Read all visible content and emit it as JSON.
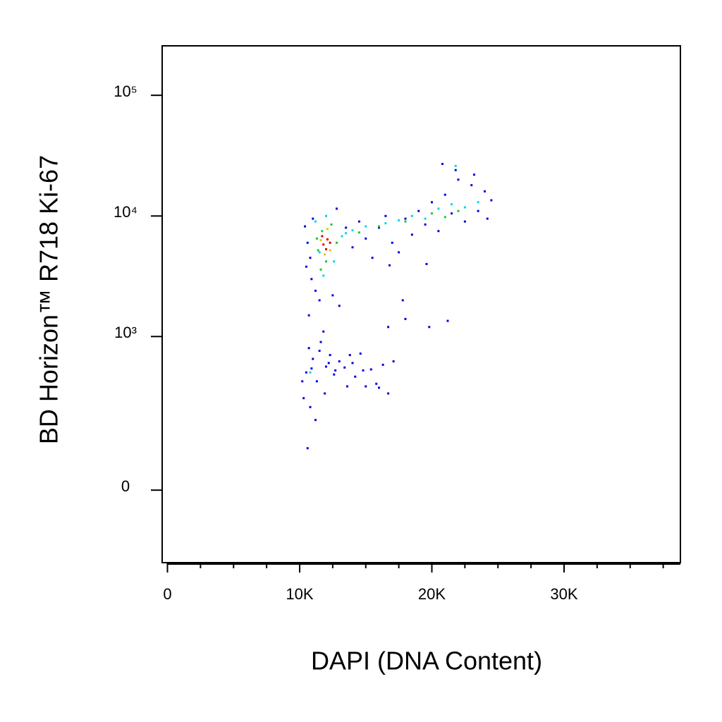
{
  "chart_data": {
    "type": "scatter",
    "xlabel": "DAPI (DNA Content)",
    "ylabel": "BD Horizon™ R718 Ki-67",
    "xlim": [
      -400,
      38800
    ],
    "xticks": [
      0,
      {
        "value": 10000,
        "label": "10K"
      },
      {
        "value": 20000,
        "label": "20K"
      },
      {
        "value": 30000,
        "label": "30K"
      }
    ],
    "x_minor_ticks": [
      2500,
      5000,
      7500,
      12500,
      15000,
      17500,
      22500,
      25000,
      27500,
      32500,
      35000,
      37500
    ],
    "ylim": [
      -200,
      257000
    ],
    "yscale": "biexponential",
    "yticks": [
      0,
      {
        "value": 1000,
        "label": "10³"
      },
      {
        "value": 10000,
        "label": "10⁴"
      },
      {
        "value": 100000,
        "label": "10⁵"
      }
    ],
    "series": [
      {
        "color": "#0000e6",
        "x": [
          10400,
          10600,
          10800,
          10500,
          11000,
          10900,
          11200,
          11500,
          12500,
          13000,
          10700,
          12800,
          13500,
          14000,
          14500,
          15000,
          15500,
          16000,
          16500,
          17000,
          17500,
          18000,
          18500,
          19000,
          19500,
          20000,
          20500,
          21000,
          21500,
          22000,
          22500,
          23000,
          23500,
          24000,
          24200,
          24500,
          20800,
          21800,
          23200,
          19600,
          17800,
          16800,
          19800,
          18000,
          21200,
          16700,
          11800,
          10500,
          10700,
          11000,
          11300,
          11600,
          12000,
          12300,
          12600,
          13000,
          13400,
          13800,
          14200,
          14600,
          15000,
          15400,
          15800,
          16300,
          16700,
          17100,
          10300,
          10200,
          10800,
          11200,
          10600,
          11900,
          12700,
          13600,
          14800,
          12200,
          11500,
          10900,
          14000,
          16000
        ],
        "y": [
          8200,
          6000,
          4500,
          3800,
          9500,
          3000,
          2400,
          2000,
          2200,
          1800,
          1500,
          11500,
          8000,
          5500,
          9000,
          6500,
          4500,
          8000,
          10000,
          6000,
          5000,
          9500,
          7000,
          11000,
          8500,
          13000,
          7500,
          15000,
          10500,
          20000,
          9000,
          18000,
          11000,
          16000,
          9500,
          13500,
          27000,
          24000,
          22000,
          4000,
          2000,
          3900,
          1200,
          1400,
          1350,
          1200,
          1100,
          500,
          800,
          650,
          420,
          900,
          560,
          700,
          480,
          620,
          550,
          700,
          460,
          720,
          380,
          530,
          400,
          580,
          330,
          620,
          300,
          420,
          250,
          190,
          95,
          330,
          520,
          380,
          520,
          600,
          760,
          540,
          600,
          370
        ]
      },
      {
        "color": "#00d8e0",
        "x": [
          11200,
          11500,
          12000,
          12600,
          13200,
          14000,
          15000,
          16500,
          17500,
          18500,
          19500,
          20500,
          21500,
          22500,
          23500,
          21800,
          11800,
          13500,
          10800
        ],
        "y": [
          9000,
          5000,
          10000,
          4200,
          6800,
          7600,
          8200,
          8700,
          9200,
          10000,
          9500,
          11500,
          12500,
          11800,
          13000,
          26000,
          3200,
          7200,
          500
        ]
      },
      {
        "color": "#22c43a",
        "x": [
          11300,
          11700,
          12000,
          12400,
          11600,
          12800,
          14500,
          16000,
          18000,
          20000,
          21000,
          22000,
          11400
        ],
        "y": [
          6500,
          7500,
          4200,
          8500,
          3600,
          6000,
          7300,
          8200,
          9000,
          10500,
          9800,
          11000,
          5200
        ]
      },
      {
        "color": "#e8c800",
        "x": [
          11600,
          12100,
          12300,
          11900
        ],
        "y": [
          6300,
          7800,
          5200,
          4800
        ]
      },
      {
        "color": "#e00000",
        "x": [
          11800,
          12100,
          12000,
          11700,
          12300
        ],
        "y": [
          5800,
          6400,
          5300,
          6800,
          6000
        ]
      }
    ]
  }
}
